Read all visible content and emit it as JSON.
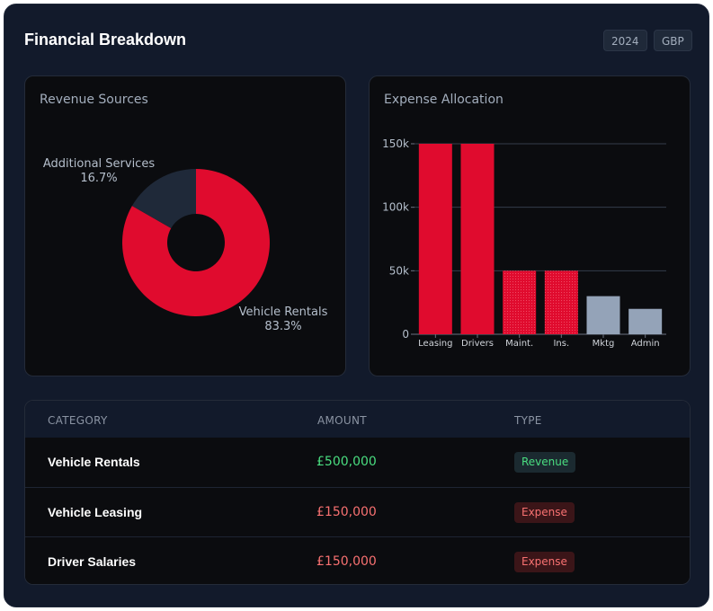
{
  "header": {
    "title": "Financial Breakdown",
    "year_badge": "2024",
    "currency_badge": "GBP"
  },
  "revenue_card": {
    "title": "Revenue Sources",
    "slices": [
      {
        "label": "Vehicle Rentals",
        "pct_label": "83.3%",
        "value": 83.3,
        "color": "#e00b2e"
      },
      {
        "label": "Additional Services",
        "pct_label": "16.7%",
        "value": 16.7,
        "color": "#1f2939"
      }
    ]
  },
  "expense_card": {
    "title": "Expense Allocation"
  },
  "chart_data": [
    {
      "type": "pie",
      "title": "Revenue Sources",
      "categories": [
        "Vehicle Rentals",
        "Additional Services"
      ],
      "values": [
        83.3,
        16.7
      ]
    },
    {
      "type": "bar",
      "title": "Expense Allocation",
      "categories": [
        "Leasing",
        "Drivers",
        "Maint.",
        "Ins.",
        "Mktg",
        "Admin"
      ],
      "values": [
        150000,
        150000,
        50000,
        50000,
        30000,
        20000
      ],
      "colors": [
        "#e00b2e",
        "#e00b2e",
        "#e00b2e",
        "#e00b2e",
        "#94a3b8",
        "#94a3b8"
      ],
      "yticks": [
        "0",
        "50k",
        "100k",
        "150k"
      ],
      "ytick_values": [
        0,
        50000,
        100000,
        150000
      ],
      "ylim": [
        0,
        150000
      ],
      "grid": true
    }
  ],
  "table": {
    "headers": {
      "category": "CATEGORY",
      "amount": "AMOUNT",
      "type": "TYPE"
    },
    "rows": [
      {
        "category": "Vehicle Rentals",
        "amount": "£500,000",
        "type": "Revenue"
      },
      {
        "category": "Vehicle Leasing",
        "amount": "£150,000",
        "type": "Expense"
      },
      {
        "category": "Driver Salaries",
        "amount": "£150,000",
        "type": "Expense"
      }
    ]
  },
  "colors": {
    "revenue_text": "#4ade80",
    "revenue_bg": "#1b2a30",
    "expense_text": "#f87171",
    "expense_bg": "#3b1518",
    "accent_red": "#e00b2e",
    "muted_gray": "#94a3b8"
  }
}
